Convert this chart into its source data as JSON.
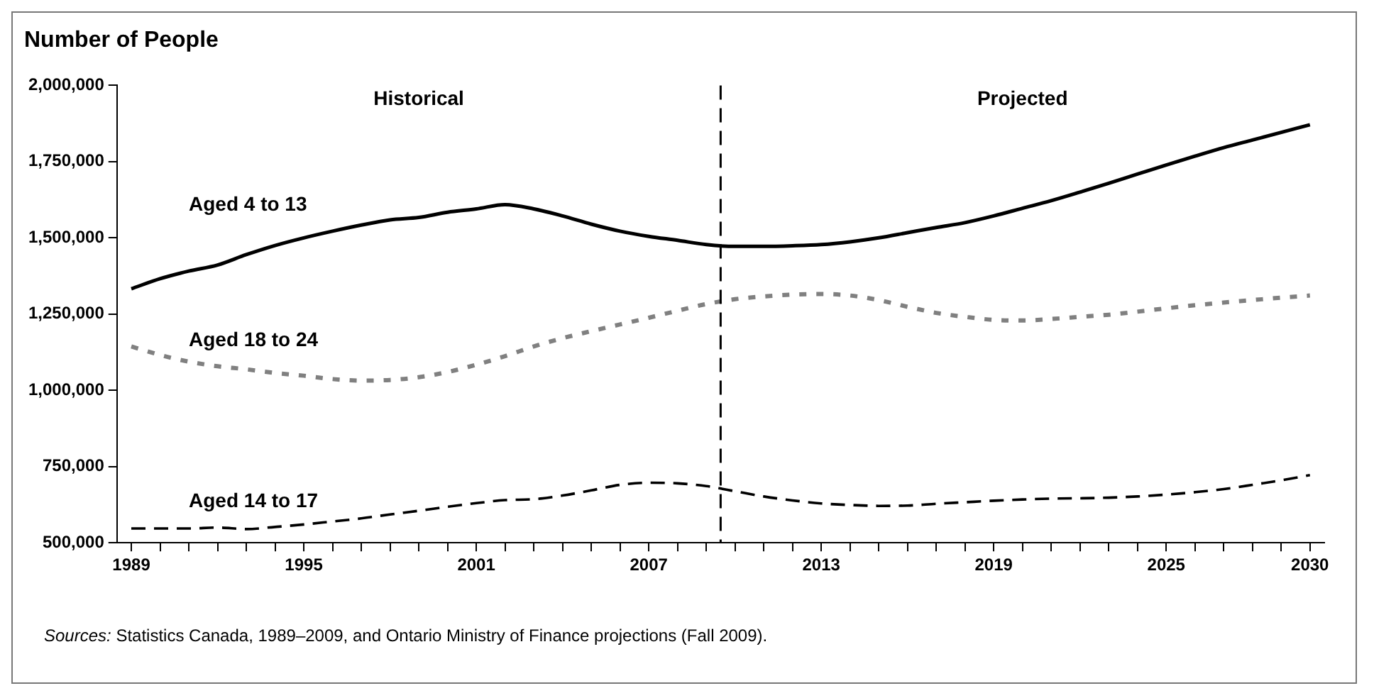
{
  "chart_data": {
    "type": "line",
    "title": "Number of People",
    "x": [
      1989,
      1990,
      1991,
      1992,
      1993,
      1994,
      1995,
      1996,
      1997,
      1998,
      1999,
      2000,
      2001,
      2002,
      2003,
      2004,
      2005,
      2006,
      2007,
      2008,
      2009,
      2010,
      2011,
      2012,
      2013,
      2014,
      2015,
      2016,
      2017,
      2018,
      2019,
      2020,
      2021,
      2022,
      2023,
      2024,
      2025,
      2026,
      2027,
      2028,
      2029,
      2030
    ],
    "xlim": [
      1988.5,
      2030.5
    ],
    "xticks": [
      1989,
      {
        "value": 1990,
        "label": null
      },
      {
        "value": 1991,
        "label": null
      },
      {
        "value": 1992,
        "label": null
      },
      {
        "value": 1993,
        "label": null
      },
      {
        "value": 1994,
        "label": null
      },
      1995,
      {
        "value": 1996,
        "label": null
      },
      {
        "value": 1997,
        "label": null
      },
      {
        "value": 1998,
        "label": null
      },
      {
        "value": 1999,
        "label": null
      },
      {
        "value": 2000,
        "label": null
      },
      2001,
      {
        "value": 2002,
        "label": null
      },
      {
        "value": 2003,
        "label": null
      },
      {
        "value": 2004,
        "label": null
      },
      {
        "value": 2005,
        "label": null
      },
      {
        "value": 2006,
        "label": null
      },
      2007,
      {
        "value": 2008,
        "label": null
      },
      {
        "value": 2009,
        "label": null
      },
      {
        "value": 2010,
        "label": null
      },
      {
        "value": 2011,
        "label": null
      },
      {
        "value": 2012,
        "label": null
      },
      2013,
      {
        "value": 2014,
        "label": null
      },
      {
        "value": 2015,
        "label": null
      },
      {
        "value": 2016,
        "label": null
      },
      {
        "value": 2017,
        "label": null
      },
      {
        "value": 2018,
        "label": null
      },
      2019,
      {
        "value": 2020,
        "label": null
      },
      {
        "value": 2021,
        "label": null
      },
      {
        "value": 2022,
        "label": null
      },
      {
        "value": 2023,
        "label": null
      },
      {
        "value": 2024,
        "label": null
      },
      2025,
      {
        "value": 2026,
        "label": null
      },
      {
        "value": 2027,
        "label": null
      },
      {
        "value": 2028,
        "label": null
      },
      {
        "value": 2029,
        "label": null
      },
      2030
    ],
    "series": [
      {
        "name": "Aged 4 to 13",
        "color": "#000000",
        "line_style": "solid",
        "values": [
          1333000,
          1366000,
          1391000,
          1411000,
          1445000,
          1475000,
          1500000,
          1522000,
          1542000,
          1559000,
          1567000,
          1584000,
          1595000,
          1609000,
          1595000,
          1572000,
          1545000,
          1522000,
          1505000,
          1492000,
          1478000,
          1472000,
          1472000,
          1474000,
          1478000,
          1487000,
          1500000,
          1517000,
          1534000,
          1550000,
          1572000,
          1597000,
          1622000,
          1650000,
          1679000,
          1709000,
          1739000,
          1768000,
          1796000,
          1821000,
          1846000,
          1871000
        ]
      },
      {
        "name": "Aged 18 to 24",
        "color": "#808080",
        "line_style": "dotted",
        "values": [
          1144000,
          1116000,
          1094000,
          1079000,
          1069000,
          1057000,
          1048000,
          1037000,
          1032000,
          1034000,
          1043000,
          1060000,
          1084000,
          1112000,
          1144000,
          1171000,
          1194000,
          1216000,
          1238000,
          1261000,
          1283000,
          1299000,
          1308000,
          1314000,
          1316000,
          1311000,
          1296000,
          1274000,
          1254000,
          1241000,
          1231000,
          1229000,
          1234000,
          1241000,
          1248000,
          1258000,
          1269000,
          1279000,
          1288000,
          1296000,
          1304000,
          1311000
        ]
      },
      {
        "name": "Aged 14 to 17",
        "color": "#000000",
        "line_style": "dashed",
        "values": [
          547000,
          547000,
          547000,
          550000,
          545000,
          552000,
          560000,
          570000,
          580000,
          593000,
          605000,
          618000,
          630000,
          640000,
          643000,
          655000,
          672000,
          690000,
          697000,
          695000,
          686000,
          669000,
          652000,
          639000,
          629000,
          624000,
          621000,
          622000,
          628000,
          633000,
          638000,
          642000,
          645000,
          646000,
          648000,
          652000,
          658000,
          666000,
          676000,
          690000,
          705000,
          722000
        ]
      }
    ],
    "ylim": [
      500000,
      2000000
    ],
    "yticks": [
      {
        "value": 500000,
        "label": "500,000"
      },
      {
        "value": 750000,
        "label": "750,000"
      },
      {
        "value": 1000000,
        "label": "1,000,000"
      },
      {
        "value": 1250000,
        "label": "1,250,000"
      },
      {
        "value": 1500000,
        "label": "1,500,000"
      },
      {
        "value": 1750000,
        "label": "1,750,000"
      },
      {
        "value": 2000000,
        "label": "2,000,000"
      }
    ],
    "ref_lines": [
      {
        "axis": "x",
        "value": 2009.5,
        "color": "#000000",
        "line_style": "dashed"
      }
    ],
    "annotations": [
      "Historical",
      "Projected",
      "Sources: Statistics Canada, 1989–2009, and Ontario Ministry of Finance projections (Fall 2009)."
    ],
    "marker": "none",
    "grid": false,
    "legend": false
  }
}
